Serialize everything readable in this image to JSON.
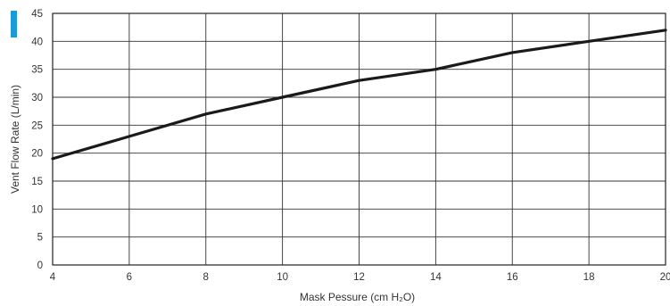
{
  "chart_data": {
    "type": "line",
    "xlabel": "Mask Pessure (cm H₂O)",
    "ylabel": "Vent Flow Rate (L/min)",
    "xlim": [
      4,
      20
    ],
    "ylim": [
      0,
      45
    ],
    "x_ticks": [
      4,
      6,
      8,
      10,
      12,
      14,
      16,
      18,
      20
    ],
    "y_ticks": [
      0,
      5,
      10,
      15,
      20,
      25,
      30,
      35,
      40,
      45
    ],
    "grid": true,
    "accent_color": "#1a9ad6",
    "line_color": "#1a1a1a",
    "series": [
      {
        "x": [
          4,
          6,
          8,
          10,
          12,
          14,
          16,
          18,
          20
        ],
        "y": [
          19,
          23,
          27,
          30,
          33,
          35,
          38,
          40,
          42
        ]
      }
    ]
  }
}
